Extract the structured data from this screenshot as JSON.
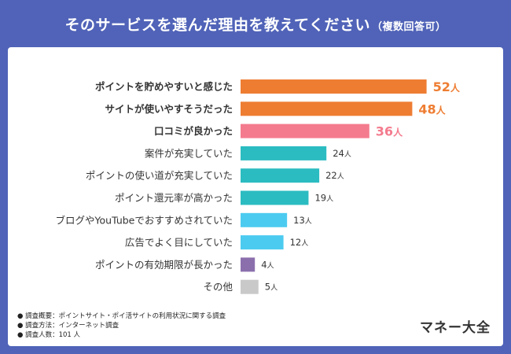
{
  "header": {
    "title": "そのサービスを選んだ理由を教えてください",
    "subtitle": "（複数回答可）"
  },
  "chart_data": {
    "type": "bar",
    "orientation": "horizontal",
    "unit": "人",
    "categories": [
      "ポイントを貯めやすいと感じた",
      "サイトが使いやすそうだった",
      "口コミが良かった",
      "案件が充実していた",
      "ポイントの使い道が充実していた",
      "ポイント還元率が高かった",
      "ブログやYouTubeでおすすめされていた",
      "広告でよく目にしていた",
      "ポイントの有効期限が長かった",
      "その他"
    ],
    "values": [
      52,
      48,
      36,
      24,
      22,
      19,
      13,
      12,
      4,
      5
    ],
    "colors": [
      "#ee7d32",
      "#ee7d32",
      "#f47b8e",
      "#2bbcc1",
      "#2bbcc1",
      "#2bbcc1",
      "#4ccbf0",
      "#4ccbf0",
      "#8b6fad",
      "#c9c9c9"
    ],
    "highlight": [
      true,
      true,
      true,
      false,
      false,
      false,
      false,
      false,
      false,
      false
    ],
    "xlim": [
      0,
      55
    ]
  },
  "notes": [
    "● 調査概要：ポイントサイト・ポイ活サイトの利用状況に関する調査",
    "● 調査方法：インターネット調査",
    "● 調査人数：101 人"
  ],
  "brand": "マネー大全"
}
